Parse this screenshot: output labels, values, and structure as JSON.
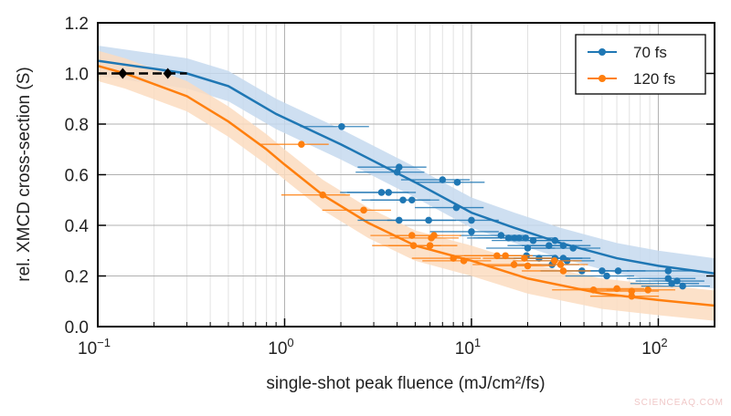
{
  "chart_data": {
    "type": "scatter",
    "xlabel": "single-shot peak fluence (mJ/cm²/fs)",
    "ylabel": "rel. XMCD cross-section (S)",
    "xscale": "log",
    "xlim": [
      0.1,
      200
    ],
    "ylim": [
      0.0,
      1.2
    ],
    "x_ticks": [
      {
        "base": "10",
        "exp": "−1",
        "value": 0.1
      },
      {
        "base": "10",
        "exp": "0",
        "value": 1
      },
      {
        "base": "10",
        "exp": "1",
        "value": 10
      },
      {
        "base": "10",
        "exp": "2",
        "value": 100
      }
    ],
    "y_ticks": [
      "0.0",
      "0.2",
      "0.4",
      "0.6",
      "0.8",
      "1.0",
      "1.2"
    ],
    "grid": true,
    "legend_position": "top-right",
    "x_rel_err": 0.4,
    "series": [
      {
        "name": "70 fs",
        "color": "#1f77b4",
        "band_color": "#c6d9ee",
        "points": [
          [
            2.02,
            0.79
          ],
          [
            4.1,
            0.63
          ],
          [
            4.0,
            0.61
          ],
          [
            3.3,
            0.53
          ],
          [
            3.6,
            0.53
          ],
          [
            4.3,
            0.5
          ],
          [
            4.8,
            0.5
          ],
          [
            7.0,
            0.58
          ],
          [
            8.4,
            0.57
          ],
          [
            8.3,
            0.47
          ],
          [
            4.1,
            0.42
          ],
          [
            5.9,
            0.42
          ],
          [
            10.0,
            0.42
          ],
          [
            10.0,
            0.375
          ],
          [
            14.4,
            0.36
          ],
          [
            15.8,
            0.35
          ],
          [
            17,
            0.35
          ],
          [
            18,
            0.35
          ],
          [
            19.5,
            0.35
          ],
          [
            21.4,
            0.34
          ],
          [
            20,
            0.31
          ],
          [
            28,
            0.34
          ],
          [
            26,
            0.32
          ],
          [
            31,
            0.32
          ],
          [
            35,
            0.31
          ],
          [
            19.7,
            0.28
          ],
          [
            23,
            0.27
          ],
          [
            28,
            0.27
          ],
          [
            31,
            0.27
          ],
          [
            32.5,
            0.26
          ],
          [
            27,
            0.245
          ],
          [
            39,
            0.22
          ],
          [
            50,
            0.22
          ],
          [
            53,
            0.2
          ],
          [
            61,
            0.22
          ],
          [
            113,
            0.22
          ],
          [
            113,
            0.19
          ],
          [
            118,
            0.17
          ],
          [
            126,
            0.18
          ],
          [
            135,
            0.16
          ]
        ],
        "fit": [
          [
            0.1,
            1.05
          ],
          [
            0.3,
            1.0
          ],
          [
            0.5,
            0.95
          ],
          [
            0.9,
            0.84
          ],
          [
            2,
            0.72
          ],
          [
            5,
            0.57
          ],
          [
            10,
            0.45
          ],
          [
            17,
            0.39
          ],
          [
            30,
            0.33
          ],
          [
            60,
            0.27
          ],
          [
            100,
            0.24
          ],
          [
            200,
            0.21
          ]
        ],
        "band_halfwidth": 0.06
      },
      {
        "name": "120 fs",
        "color": "#ff7f0e",
        "band_color": "#fbdcc0",
        "points": [
          [
            1.23,
            0.72
          ],
          [
            1.6,
            0.52
          ],
          [
            2.65,
            0.46
          ],
          [
            4.8,
            0.36
          ],
          [
            6.3,
            0.36
          ],
          [
            6.1,
            0.35
          ],
          [
            4.9,
            0.32
          ],
          [
            6.0,
            0.32
          ],
          [
            8.0,
            0.27
          ],
          [
            9.1,
            0.26
          ],
          [
            13.7,
            0.28
          ],
          [
            15.2,
            0.28
          ],
          [
            16.9,
            0.245
          ],
          [
            19.2,
            0.27
          ],
          [
            20,
            0.24
          ],
          [
            27.8,
            0.26
          ],
          [
            30,
            0.245
          ],
          [
            31,
            0.22
          ],
          [
            45,
            0.145
          ],
          [
            60,
            0.15
          ],
          [
            72,
            0.14
          ],
          [
            88,
            0.145
          ],
          [
            72,
            0.12
          ]
        ],
        "fit": [
          [
            0.1,
            1.03
          ],
          [
            0.14,
            1.0
          ],
          [
            0.3,
            0.91
          ],
          [
            0.5,
            0.81
          ],
          [
            0.8,
            0.7
          ],
          [
            1,
            0.64
          ],
          [
            1.6,
            0.52
          ],
          [
            2.8,
            0.41
          ],
          [
            5,
            0.32
          ],
          [
            10,
            0.26
          ],
          [
            20,
            0.19
          ],
          [
            50,
            0.13
          ],
          [
            100,
            0.105
          ],
          [
            200,
            0.083
          ]
        ],
        "band_halfwidth": 0.06
      }
    ],
    "reference_points": {
      "color": "#000000",
      "points": [
        [
          0.136,
          1.0
        ],
        [
          0.237,
          1.0
        ]
      ],
      "line_range": [
        0.1,
        0.3
      ]
    }
  },
  "watermark": "SCIENCEAQ.COM"
}
